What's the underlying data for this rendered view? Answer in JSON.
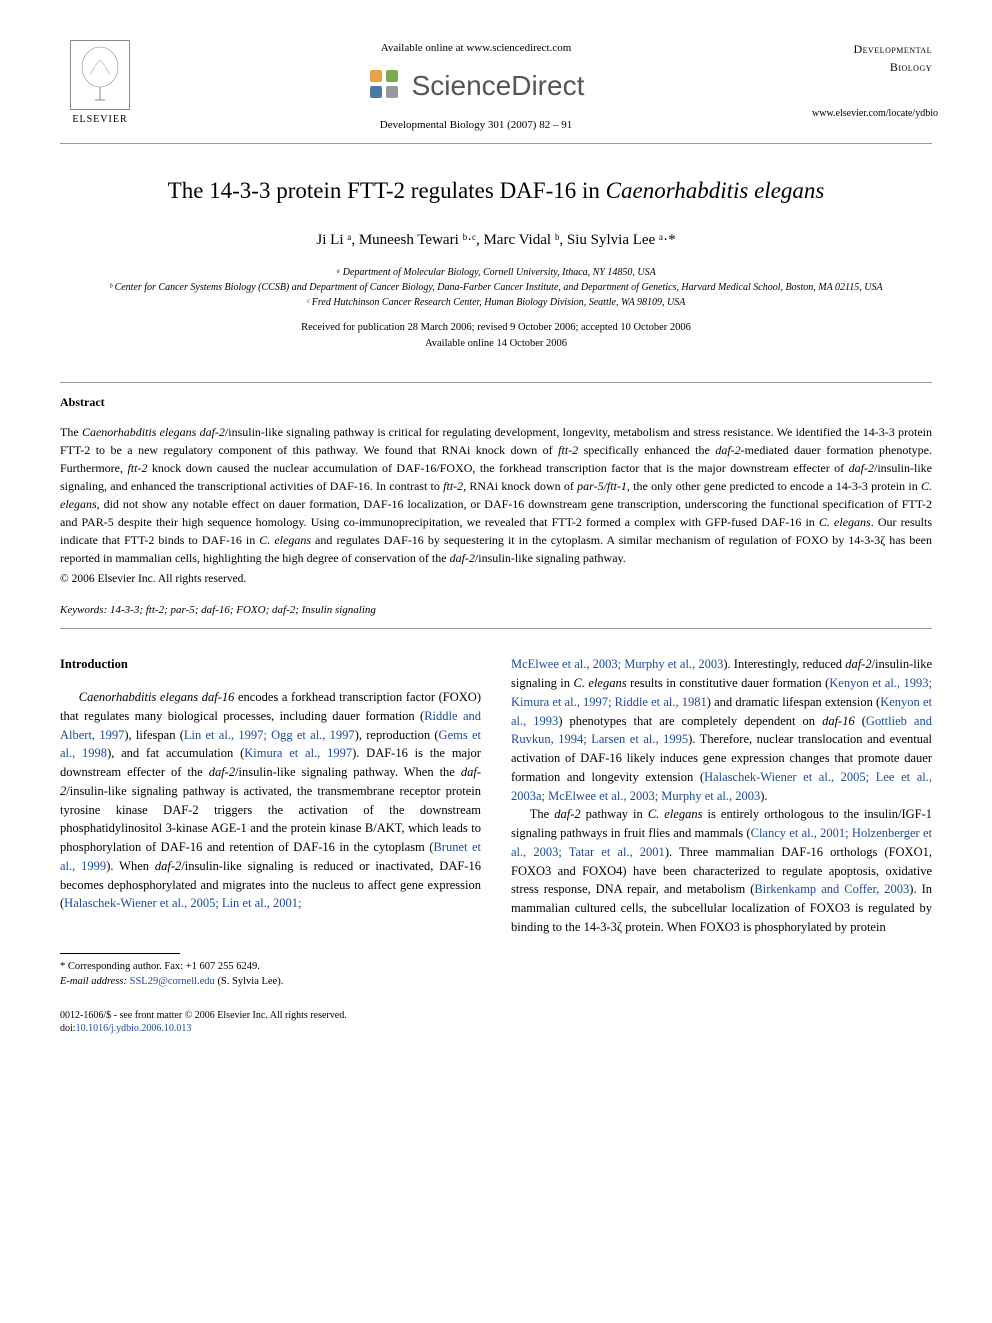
{
  "header": {
    "available_online": "Available online at www.sciencedirect.com",
    "sd_text": "ScienceDirect",
    "elsevier_label": "ELSEVIER",
    "journal_ref": "Developmental Biology 301 (2007) 82 – 91",
    "journal_name_line1": "Developmental",
    "journal_name_line2": "Biology",
    "journal_url": "www.elsevier.com/locate/ydbio"
  },
  "title": {
    "prefix": "The 14-3-3 protein FTT-2 regulates DAF-16 in ",
    "italic": "Caenorhabditis elegans"
  },
  "authors": "Ji Li ᵃ, Muneesh Tewari ᵇ·ᶜ, Marc Vidal ᵇ, Siu Sylvia Lee ᵃ·*",
  "affiliations": {
    "a": "ᵃ Department of Molecular Biology, Cornell University, Ithaca, NY 14850, USA",
    "b": "ᵇ Center for Cancer Systems Biology (CCSB) and Department of Cancer Biology, Dana-Farber Cancer Institute, and Department of Genetics, Harvard Medical School, Boston, MA 02115, USA",
    "c": "ᶜ Fred Hutchinson Cancer Research Center, Human Biology Division, Seattle, WA 98109, USA"
  },
  "dates": {
    "received": "Received for publication 28 March 2006; revised 9 October 2006; accepted 10 October 2006",
    "online": "Available online 14 October 2006"
  },
  "abstract": {
    "label": "Abstract",
    "text_parts": [
      {
        "t": "The ",
        "i": false
      },
      {
        "t": "Caenorhabditis elegans daf-2",
        "i": true
      },
      {
        "t": "/insulin-like signaling pathway is critical for regulating development, longevity, metabolism and stress resistance. We identified the 14-3-3 protein FTT-2 to be a new regulatory component of this pathway. We found that RNAi knock down of ",
        "i": false
      },
      {
        "t": "ftt-2",
        "i": true
      },
      {
        "t": " specifically enhanced the ",
        "i": false
      },
      {
        "t": "daf-2",
        "i": true
      },
      {
        "t": "-mediated dauer formation phenotype. Furthermore, ",
        "i": false
      },
      {
        "t": "ftt-2",
        "i": true
      },
      {
        "t": " knock down caused the nuclear accumulation of DAF-16/FOXO, the forkhead transcription factor that is the major downstream effecter of ",
        "i": false
      },
      {
        "t": "daf-2",
        "i": true
      },
      {
        "t": "/insulin-like signaling, and enhanced the transcriptional activities of DAF-16. In contrast to ",
        "i": false
      },
      {
        "t": "ftt-2",
        "i": true
      },
      {
        "t": ", RNAi knock down of ",
        "i": false
      },
      {
        "t": "par-5/ftt-1",
        "i": true
      },
      {
        "t": ", the only other gene predicted to encode a 14-3-3 protein in ",
        "i": false
      },
      {
        "t": "C. elegans",
        "i": true
      },
      {
        "t": ", did not show any notable effect on dauer formation, DAF-16 localization, or DAF-16 downstream gene transcription, underscoring the functional specification of FTT-2 and PAR-5 despite their high sequence homology. Using co-immunoprecipitation, we revealed that FTT-2 formed a complex with GFP-fused DAF-16 in ",
        "i": false
      },
      {
        "t": "C. elegans",
        "i": true
      },
      {
        "t": ". Our results indicate that FTT-2 binds to DAF-16 in ",
        "i": false
      },
      {
        "t": "C. elegans",
        "i": true
      },
      {
        "t": " and regulates DAF-16 by sequestering it in the cytoplasm. A similar mechanism of regulation of FOXO by 14-3-3ζ has been reported in mammalian cells, highlighting the high degree of conservation of the ",
        "i": false
      },
      {
        "t": "daf-2",
        "i": true
      },
      {
        "t": "/insulin-like signaling pathway.",
        "i": false
      }
    ],
    "copyright": "© 2006 Elsevier Inc. All rights reserved."
  },
  "keywords": {
    "label": "Keywords:",
    "text": " 14-3-3; ftt-2; par-5; daf-16; FOXO; daf-2; Insulin signaling"
  },
  "intro": {
    "label": "Introduction",
    "col1_parts": [
      {
        "t": "Caenorhabditis elegans daf-16",
        "i": true
      },
      {
        "t": " encodes a forkhead transcription factor (FOXO) that regulates many biological processes, including dauer formation (",
        "i": false
      },
      {
        "t": "Riddle and Albert, 1997",
        "r": true
      },
      {
        "t": "), lifespan (",
        "i": false
      },
      {
        "t": "Lin et al., 1997; Ogg et al., 1997",
        "r": true
      },
      {
        "t": "), reproduction (",
        "i": false
      },
      {
        "t": "Gems et al., 1998",
        "r": true
      },
      {
        "t": "), and fat accumulation (",
        "i": false
      },
      {
        "t": "Kimura et al., 1997",
        "r": true
      },
      {
        "t": "). DAF-16 is the major downstream effecter of the ",
        "i": false
      },
      {
        "t": "daf-2",
        "i": true
      },
      {
        "t": "/insulin-like signaling pathway. When the ",
        "i": false
      },
      {
        "t": "daf-2",
        "i": true
      },
      {
        "t": "/insulin-like signaling pathway is activated, the transmembrane receptor protein tyrosine kinase DAF-2 triggers the activation of the downstream phosphatidylinositol 3-kinase AGE-1 and the protein kinase B/AKT, which leads to phosphorylation of DAF-16 and retention of DAF-16 in the cytoplasm (",
        "i": false
      },
      {
        "t": "Brunet et al., 1999",
        "r": true
      },
      {
        "t": "). When ",
        "i": false
      },
      {
        "t": "daf-2",
        "i": true
      },
      {
        "t": "/insulin-like signaling is reduced or inactivated, DAF-16 becomes dephosphorylated and migrates into the nucleus to affect gene expression (",
        "i": false
      },
      {
        "t": "Halaschek-Wiener et al., 2005; Lin et al., 2001;",
        "r": true
      }
    ],
    "col2_parts": [
      {
        "t": "McElwee et al., 2003; Murphy et al., 2003",
        "r": true
      },
      {
        "t": "). Interestingly, reduced ",
        "i": false
      },
      {
        "t": "daf-2",
        "i": true
      },
      {
        "t": "/insulin-like signaling in ",
        "i": false
      },
      {
        "t": "C. elegans",
        "i": true
      },
      {
        "t": " results in constitutive dauer formation (",
        "i": false
      },
      {
        "t": "Kenyon et al., 1993; Kimura et al., 1997; Riddle et al., 1981",
        "r": true
      },
      {
        "t": ") and dramatic lifespan extension (",
        "i": false
      },
      {
        "t": "Kenyon et al., 1993",
        "r": true
      },
      {
        "t": ") phenotypes that are completely dependent on ",
        "i": false
      },
      {
        "t": "daf-16",
        "i": true
      },
      {
        "t": " (",
        "i": false
      },
      {
        "t": "Gottlieb and Ruvkun, 1994; Larsen et al., 1995",
        "r": true
      },
      {
        "t": "). Therefore, nuclear translocation and eventual activation of DAF-16 likely induces gene expression changes that promote dauer formation and longevity extension (",
        "i": false
      },
      {
        "t": "Halaschek-Wiener et al., 2005; Lee et al., 2003a; McElwee et al., 2003; Murphy et al., 2003",
        "r": true
      },
      {
        "t": ").",
        "i": false
      }
    ],
    "col2_p2_parts": [
      {
        "t": "The ",
        "i": false
      },
      {
        "t": "daf-2",
        "i": true
      },
      {
        "t": " pathway in ",
        "i": false
      },
      {
        "t": "C. elegans",
        "i": true
      },
      {
        "t": " is entirely orthologous to the insulin/IGF-1 signaling pathways in fruit flies and mammals (",
        "i": false
      },
      {
        "t": "Clancy et al., 2001; Holzenberger et al., 2003; Tatar et al., 2001",
        "r": true
      },
      {
        "t": "). Three mammalian DAF-16 orthologs (FOXO1, FOXO3 and FOXO4) have been characterized to regulate apoptosis, oxidative stress response, DNA repair, and metabolism (",
        "i": false
      },
      {
        "t": "Birkenkamp and Coffer, 2003",
        "r": true
      },
      {
        "t": "). In mammalian cultured cells, the subcellular localization of FOXO3 is regulated by binding to the 14-3-3ζ protein. When FOXO3 is phosphorylated by protein",
        "i": false
      }
    ]
  },
  "corresponding": {
    "star": "* Corresponding author. Fax: +1 607 255 6249.",
    "email_label": "E-mail address:",
    "email": "SSL29@cornell.edu",
    "email_suffix": " (S. Sylvia Lee)."
  },
  "footer": {
    "line1": "0012-1606/$ - see front matter © 2006 Elsevier Inc. All rights reserved.",
    "doi_label": "doi:",
    "doi": "10.1016/j.ydbio.2006.10.013"
  },
  "colors": {
    "text": "#000000",
    "link": "#1a4b9b",
    "rule": "#999999",
    "bg": "#ffffff"
  }
}
